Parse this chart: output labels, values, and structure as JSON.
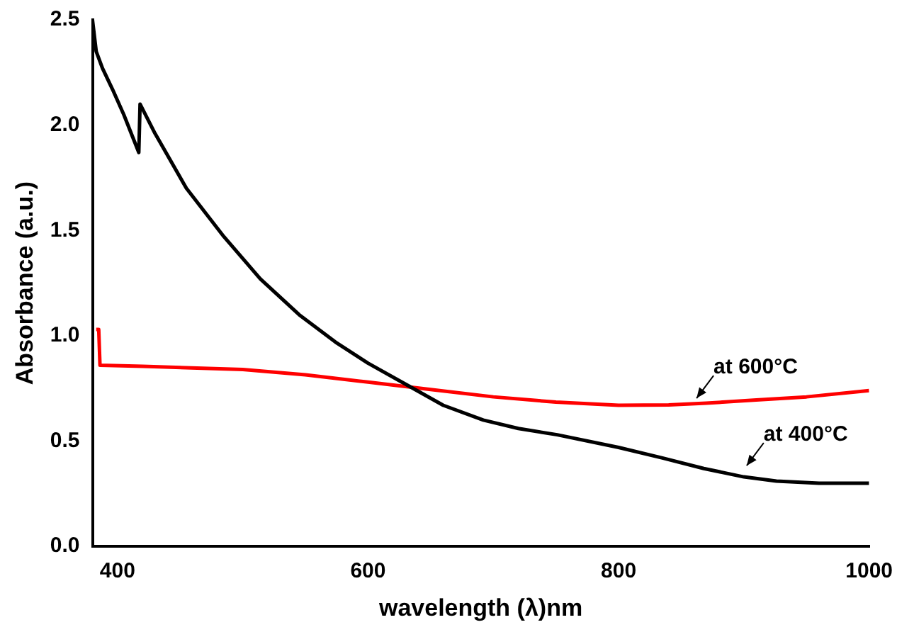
{
  "chart_data": {
    "type": "line",
    "xlabel": "wavelength (λ)nm",
    "ylabel": "Absorbance (a.u.)",
    "xlim": [
      380,
      1000
    ],
    "xticks": [
      400,
      600,
      800,
      1000
    ],
    "ylim": [
      0,
      2.5
    ],
    "yticks": [
      {
        "value": 0,
        "label": "0.0"
      },
      0.5,
      {
        "value": 1,
        "label": "1.0"
      },
      1.5,
      {
        "value": 2,
        "label": "2.0"
      },
      2.5
    ],
    "grid": false,
    "legend": false,
    "marker": "none",
    "line_style": "solid",
    "series": [
      {
        "color": "#000000",
        "x": [
          380,
          383,
          388,
          396,
          405,
          417,
          418,
          430,
          455,
          485,
          514,
          545,
          574,
          600,
          633,
          660,
          692,
          720,
          751,
          800,
          835,
          868,
          900,
          926,
          960,
          1000
        ],
        "values": [
          2.5,
          2.35,
          2.27,
          2.17,
          2.05,
          1.87,
          2.1,
          1.96,
          1.7,
          1.47,
          1.27,
          1.1,
          0.97,
          0.87,
          0.76,
          0.67,
          0.6,
          0.56,
          0.53,
          0.47,
          0.42,
          0.37,
          0.33,
          0.31,
          0.3,
          0.3
        ]
      },
      {
        "color": "#ff0000",
        "x": [
          383,
          385,
          386,
          420,
          500,
          550,
          600,
          650,
          700,
          750,
          800,
          840,
          870,
          910,
          950,
          1000
        ],
        "values": [
          1.03,
          1.03,
          0.86,
          0.855,
          0.84,
          0.815,
          0.78,
          0.745,
          0.71,
          0.685,
          0.67,
          0.672,
          0.68,
          0.695,
          0.71,
          0.74
        ]
      }
    ],
    "annotations": [
      {
        "text": "at 600°C",
        "x": 860,
        "y": 0.69
      },
      {
        "text": "at 400°C",
        "x": 900,
        "y": 0.37
      }
    ]
  }
}
